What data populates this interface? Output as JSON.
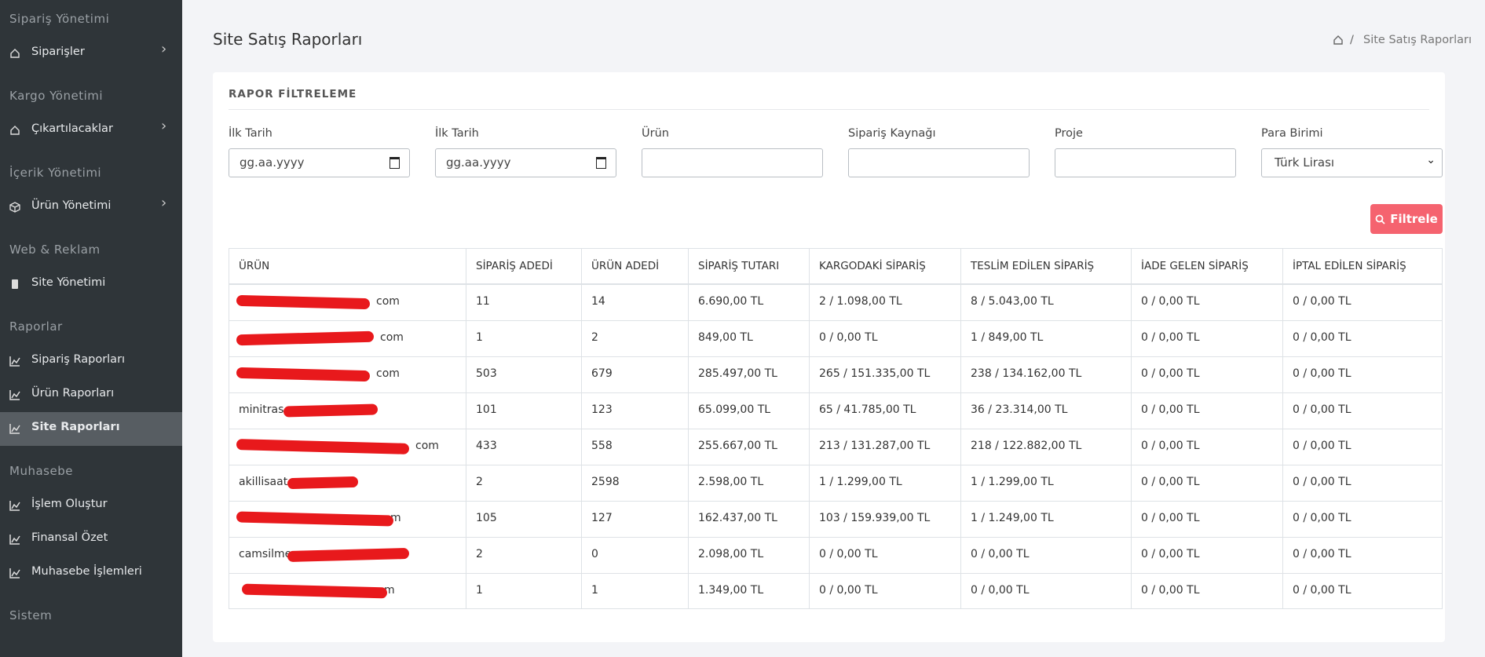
{
  "sidebar": [
    {
      "title": "Sipariş Yönetimi",
      "items": [
        {
          "label": "Siparişler",
          "submenu": true,
          "icon": "home"
        }
      ]
    },
    {
      "title": "Kargo Yönetimi",
      "items": [
        {
          "label": "Çıkartılacaklar",
          "submenu": true,
          "icon": "home"
        }
      ]
    },
    {
      "title": "İçerik Yönetimi",
      "items": [
        {
          "label": "Ürün Yönetimi",
          "submenu": true,
          "icon": "box"
        }
      ]
    },
    {
      "title": "Web & Reklam",
      "items": [
        {
          "label": "Site Yönetimi",
          "icon": "phone"
        }
      ]
    },
    {
      "title": "Raporlar",
      "items": [
        {
          "label": "Sipariş Raporları",
          "icon": "chart"
        },
        {
          "label": "Ürün Raporları",
          "icon": "chart"
        },
        {
          "label": "Site Raporları",
          "icon": "chart",
          "active": true
        }
      ]
    },
    {
      "title": "Muhasebe",
      "items": [
        {
          "label": "İşlem Oluştur",
          "icon": "chart"
        },
        {
          "label": "Finansal Özet",
          "icon": "chart"
        },
        {
          "label": "Muhasebe İşlemleri",
          "icon": "chart"
        }
      ]
    },
    {
      "title": "Sistem",
      "items": []
    }
  ],
  "header": {
    "title": "Site Satış Raporları",
    "breadcrumb": {
      "separator": "/",
      "current": "Site Satış Raporları"
    }
  },
  "filter": {
    "title": "RAPOR FİLTRELEME",
    "fields": [
      {
        "label": "İlk Tarih",
        "placeholder": "gg.aa.yyyy",
        "kind": "date"
      },
      {
        "label": "İlk Tarih",
        "placeholder": "gg.aa.yyyy",
        "kind": "date"
      },
      {
        "label": "Ürün",
        "kind": "text"
      },
      {
        "label": "Sipariş Kaynağı",
        "kind": "text"
      },
      {
        "label": "Proje",
        "kind": "text"
      },
      {
        "label": "Para Birimi",
        "value": "Türk Lirası",
        "kind": "select"
      }
    ],
    "button": "Filtrele"
  },
  "table": {
    "columns": [
      "ÜRÜN",
      "SİPARİŞ ADEDİ",
      "ÜRÜN ADEDİ",
      "SİPARİŞ TUTARI",
      "KARGODAKİ SİPARİŞ",
      "TESLİM EDİLEN SİPARİŞ",
      "İADE GELEN SİPARİŞ",
      "İPTAL EDİLEN SİPARİŞ"
    ],
    "rows": [
      [
        "com",
        "11",
        "14",
        "6.690,00 TL",
        "2 / 1.098,00 TL",
        "8 / 5.043,00 TL",
        "0 / 0,00 TL",
        "0 / 0,00 TL"
      ],
      [
        "com",
        "1",
        "2",
        "849,00 TL",
        "0 / 0,00 TL",
        "1 / 849,00 TL",
        "0 / 0,00 TL",
        "0 / 0,00 TL"
      ],
      [
        "com",
        "503",
        "679",
        "285.497,00 TL",
        "265 / 151.335,00 TL",
        "238 / 134.162,00 TL",
        "0 / 0,00 TL",
        "0 / 0,00 TL"
      ],
      [
        "minitras",
        "101",
        "123",
        "65.099,00 TL",
        "65 / 41.785,00 TL",
        "36 / 23.314,00 TL",
        "0 / 0,00 TL",
        "0 / 0,00 TL"
      ],
      [
        "com",
        "433",
        "558",
        "255.667,00 TL",
        "213 / 131.287,00 TL",
        "218 / 122.882,00 TL",
        "0 / 0,00 TL",
        "0 / 0,00 TL"
      ],
      [
        "akillisaat",
        "2",
        "2598",
        "2.598,00 TL",
        "1 / 1.299,00 TL",
        "1 / 1.299,00 TL",
        "0 / 0,00 TL",
        "0 / 0,00 TL"
      ],
      [
        "m",
        "105",
        "127",
        "162.437,00 TL",
        "103 / 159.939,00 TL",
        "1 / 1.249,00 TL",
        "0 / 0,00 TL",
        "0 / 0,00 TL"
      ],
      [
        "camsilme",
        "2",
        "0",
        "2.098,00 TL",
        "0 / 0,00 TL",
        "0 / 0,00 TL",
        "0 / 0,00 TL",
        "0 / 0,00 TL"
      ],
      [
        "m",
        "1",
        "1",
        "1.349,00 TL",
        "0 / 0,00 TL",
        "0 / 0,00 TL",
        "0 / 0,00 TL",
        "0 / 0,00 TL"
      ]
    ]
  }
}
